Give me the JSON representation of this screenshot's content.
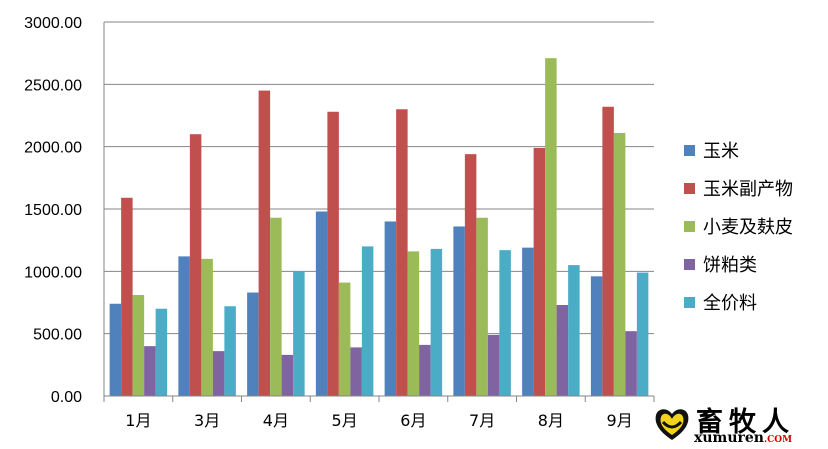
{
  "chart_data": {
    "type": "bar",
    "title": "",
    "xlabel": "",
    "ylabel": "",
    "categories": [
      "1月",
      "3月",
      "4月",
      "5月",
      "6月",
      "7月",
      "8月",
      "9月"
    ],
    "series": [
      {
        "name": "玉米",
        "color": "#4f81bd",
        "values": [
          740,
          1120,
          830,
          1480,
          1400,
          1360,
          1190,
          960
        ]
      },
      {
        "name": "玉米副产物",
        "color": "#c0504d",
        "values": [
          1590,
          2100,
          2450,
          2280,
          2300,
          1940,
          1990,
          2320
        ]
      },
      {
        "name": "小麦及麸皮",
        "color": "#9bbb59",
        "values": [
          810,
          1100,
          1430,
          910,
          1160,
          1430,
          2710,
          2110
        ]
      },
      {
        "name": "饼粕类",
        "color": "#8064a2",
        "values": [
          400,
          360,
          330,
          390,
          410,
          490,
          730,
          520
        ]
      },
      {
        "name": "全价料",
        "color": "#4bacc6",
        "values": [
          700,
          720,
          1000,
          1200,
          1180,
          1170,
          1050,
          990
        ]
      }
    ],
    "y_ticks": [
      "0.00",
      "500.00",
      "1000.00",
      "1500.00",
      "2000.00",
      "2500.00",
      "3000.00"
    ],
    "ylim": [
      0,
      3000
    ],
    "grid": true,
    "legend_position": "right"
  },
  "watermark": {
    "name": "畜牧人",
    "domain": "xumuren",
    "tld": ".COM"
  }
}
